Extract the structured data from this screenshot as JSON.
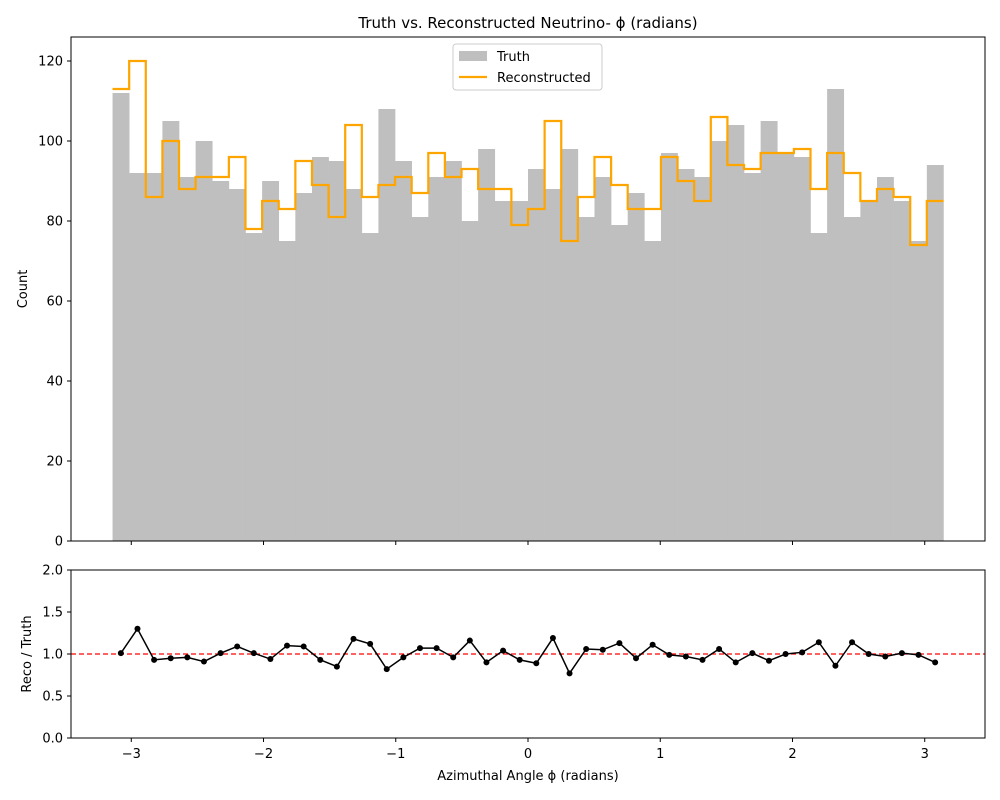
{
  "chart_data": [
    {
      "type": "bar",
      "panel": "main",
      "title": "Truth vs. Reconstructed Neutrino- ϕ (radians)",
      "ylabel": "Count",
      "xlim": [
        -3.4558,
        3.4558
      ],
      "ylim": [
        0,
        126
      ],
      "grid": false,
      "legend": {
        "placement": "top-center",
        "entries": [
          "Truth",
          "Reconstructed"
        ]
      },
      "x_ticks": [
        -3,
        -2,
        -1,
        0,
        1,
        2,
        3
      ],
      "x_tick_labels": [
        "−3",
        "−2",
        "−1",
        "0",
        "1",
        "2",
        "3"
      ],
      "y_ticks": [
        0,
        20,
        40,
        60,
        80,
        100,
        120
      ],
      "y_tick_labels": [
        "0",
        "20",
        "40",
        "60",
        "80",
        "100",
        "120"
      ],
      "bin_edges_range": [
        -3.1416,
        3.1416
      ],
      "n_bins": 50,
      "series": [
        {
          "name": "Truth",
          "style": "filled histogram",
          "color": "#bfbfbf",
          "values": [
            112,
            92,
            92,
            105,
            91,
            100,
            90,
            88,
            77,
            90,
            75,
            87,
            96,
            95,
            88,
            77,
            108,
            95,
            81,
            91,
            95,
            80,
            98,
            85,
            85,
            93,
            88,
            98,
            81,
            91,
            79,
            87,
            75,
            97,
            93,
            91,
            100,
            104,
            92,
            105,
            97,
            96,
            77,
            113,
            81,
            85,
            91,
            85,
            75,
            94
          ]
        },
        {
          "name": "Reconstructed",
          "style": "step histogram",
          "color": "#ffa500",
          "values": [
            113,
            120,
            86,
            100,
            88,
            91,
            91,
            96,
            78,
            85,
            83,
            95,
            89,
            81,
            104,
            86,
            89,
            91,
            87,
            97,
            91,
            93,
            88,
            88,
            79,
            83,
            105,
            75,
            86,
            96,
            89,
            83,
            83,
            96,
            90,
            85,
            106,
            94,
            93,
            97,
            97,
            98,
            88,
            97,
            92,
            85,
            88,
            86,
            74,
            85
          ]
        }
      ]
    },
    {
      "type": "line",
      "panel": "ratio",
      "xlabel": "Azimuthal Angle ϕ (radians)",
      "ylabel": "Reco / Truth",
      "xlim": [
        -3.4558,
        3.4558
      ],
      "ylim": [
        0,
        2
      ],
      "grid": false,
      "x_ticks": [
        -3,
        -2,
        -1,
        0,
        1,
        2,
        3
      ],
      "x_tick_labels": [
        "−3",
        "−2",
        "−1",
        "0",
        "1",
        "2",
        "3"
      ],
      "y_ticks": [
        0,
        0.5,
        1,
        1.5,
        2
      ],
      "y_tick_labels": [
        "0.0",
        "0.5",
        "1.0",
        "1.5",
        "2.0"
      ],
      "reference_line": {
        "y": 1.0,
        "style": "dashed",
        "color": "#ff0000"
      },
      "series": [
        {
          "color": "#000000",
          "marker": "circle",
          "values": [
            1.01,
            1.3,
            0.93,
            0.95,
            0.96,
            0.91,
            1.01,
            1.09,
            1.01,
            0.94,
            1.1,
            1.09,
            0.93,
            0.85,
            1.18,
            1.12,
            0.82,
            0.96,
            1.07,
            1.07,
            0.96,
            1.16,
            0.9,
            1.04,
            0.93,
            0.89,
            1.19,
            0.77,
            1.06,
            1.05,
            1.13,
            0.95,
            1.11,
            0.99,
            0.97,
            0.93,
            1.06,
            0.9,
            1.01,
            0.92,
            1.0,
            1.02,
            1.14,
            0.86,
            1.14,
            1.0,
            0.97,
            1.01,
            0.99,
            0.9
          ]
        }
      ]
    }
  ]
}
